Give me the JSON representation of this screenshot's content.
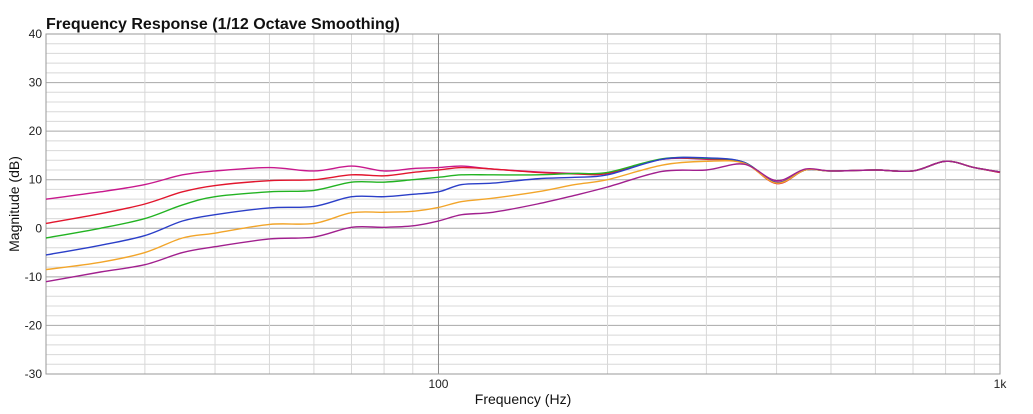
{
  "chart_data": {
    "type": "line",
    "title": "Frequency Response (1/12 Octave Smoothing)",
    "xlabel": "Frequency (Hz)",
    "ylabel": "Magnitude (dB)",
    "x_scale": "log",
    "xlim": [
      20,
      1000
    ],
    "ylim": [
      -30,
      40
    ],
    "x_ticks": [
      {
        "value": 100,
        "label": "100"
      },
      {
        "value": 1000,
        "label": "1k"
      }
    ],
    "y_ticks": [
      {
        "value": 40,
        "label": "40"
      },
      {
        "value": 30,
        "label": "30"
      },
      {
        "value": 20,
        "label": "20"
      },
      {
        "value": 10,
        "label": "10"
      },
      {
        "value": 0,
        "label": "0"
      },
      {
        "value": -10,
        "label": "-10"
      },
      {
        "value": -20,
        "label": "-20"
      },
      {
        "value": -30,
        "label": "-30"
      }
    ],
    "grid": true,
    "x": [
      20,
      25,
      30,
      35,
      40,
      50,
      60,
      70,
      80,
      90,
      100,
      110,
      125,
      150,
      175,
      200,
      250,
      300,
      350,
      400,
      450,
      500,
      600,
      700,
      800,
      900,
      1000
    ],
    "series": [
      {
        "color": "#c8188c",
        "values": [
          6,
          7.5,
          9,
          11,
          11.8,
          12.5,
          11.8,
          12.8,
          11.8,
          12.3,
          12.5,
          12.8,
          12.2,
          11.6,
          11.3,
          11.3,
          14.2,
          14.2,
          13.5,
          9.5,
          12,
          11.8,
          12,
          11.8,
          13.8,
          12.5,
          11.5
        ]
      },
      {
        "color": "#e2162d",
        "values": [
          1,
          3,
          5,
          7.5,
          8.8,
          9.8,
          10,
          11,
          10.8,
          11.5,
          12,
          12.5,
          12.2,
          11.5,
          11.2,
          11.3,
          14.2,
          14.3,
          13.5,
          9.2,
          12,
          11.8,
          12,
          11.8,
          13.8,
          12.5,
          11.5
        ]
      },
      {
        "color": "#22b322",
        "values": [
          -2,
          0,
          2,
          4.8,
          6.5,
          7.5,
          7.8,
          9.5,
          9.5,
          10,
          10.5,
          11,
          11,
          11,
          11.3,
          11.5,
          14.3,
          14.4,
          13.6,
          9.4,
          12,
          11.8,
          12,
          11.8,
          13.8,
          12.5,
          11.6
        ]
      },
      {
        "color": "#2b3fc8",
        "values": [
          -5.5,
          -3.5,
          -1.5,
          1.5,
          2.8,
          4.2,
          4.5,
          6.5,
          6.5,
          7,
          7.5,
          9,
          9.3,
          10.2,
          10.5,
          11,
          14.2,
          14.5,
          13.6,
          9.4,
          12,
          11.8,
          12,
          11.8,
          13.8,
          12.5,
          11.6
        ]
      },
      {
        "color": "#f2a52a",
        "values": [
          -8.5,
          -7,
          -5,
          -2,
          -1,
          0.8,
          1,
          3.2,
          3.3,
          3.5,
          4.3,
          5.5,
          6.2,
          7.5,
          9,
          10,
          13,
          13.8,
          13.4,
          9.3,
          12,
          11.8,
          12,
          11.8,
          13.8,
          12.5,
          11.6
        ]
      },
      {
        "color": "#a1208e",
        "values": [
          -11,
          -9,
          -7.5,
          -5,
          -3.8,
          -2.2,
          -1.8,
          0.2,
          0.2,
          0.5,
          1.5,
          2.8,
          3.3,
          5,
          6.8,
          8.5,
          11.7,
          12,
          13.2,
          9.8,
          12.2,
          11.8,
          12,
          11.8,
          13.8,
          12.5,
          11.6
        ]
      }
    ]
  }
}
